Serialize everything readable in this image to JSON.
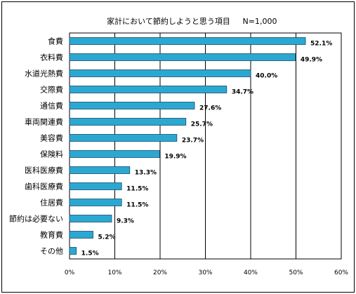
{
  "chart_data": {
    "type": "bar",
    "orientation": "horizontal",
    "title": "家計において節約しようと思う項目",
    "subtitle": "N=1,000",
    "categories": [
      "食費",
      "衣料費",
      "水道光熱費",
      "交際費",
      "通信費",
      "車両関連費",
      "美容費",
      "保険料",
      "医科医療費",
      "歯科医療費",
      "住居費",
      "節約は必要ない",
      "教育費",
      "その他"
    ],
    "values": [
      52.1,
      49.9,
      40.0,
      34.7,
      27.6,
      25.7,
      23.7,
      19.9,
      13.3,
      11.5,
      11.5,
      9.3,
      5.2,
      1.5
    ],
    "value_labels": [
      "52.1%",
      "49.9%",
      "40.0%",
      "34.7%",
      "27.6%",
      "25.7%",
      "23.7%",
      "19.9%",
      "13.3%",
      "11.5%",
      "11.5%",
      "9.3%",
      "5.2%",
      "1.5%"
    ],
    "xlim": [
      0,
      60
    ],
    "xticks": [
      0,
      10,
      20,
      30,
      40,
      50,
      60
    ],
    "xtick_labels": [
      "0%",
      "10%",
      "20%",
      "30%",
      "40%",
      "50%",
      "60%"
    ],
    "grid": true,
    "bar_color": "#2ba8d2",
    "bar_stroke": "#1a4a66",
    "legend": "none"
  }
}
